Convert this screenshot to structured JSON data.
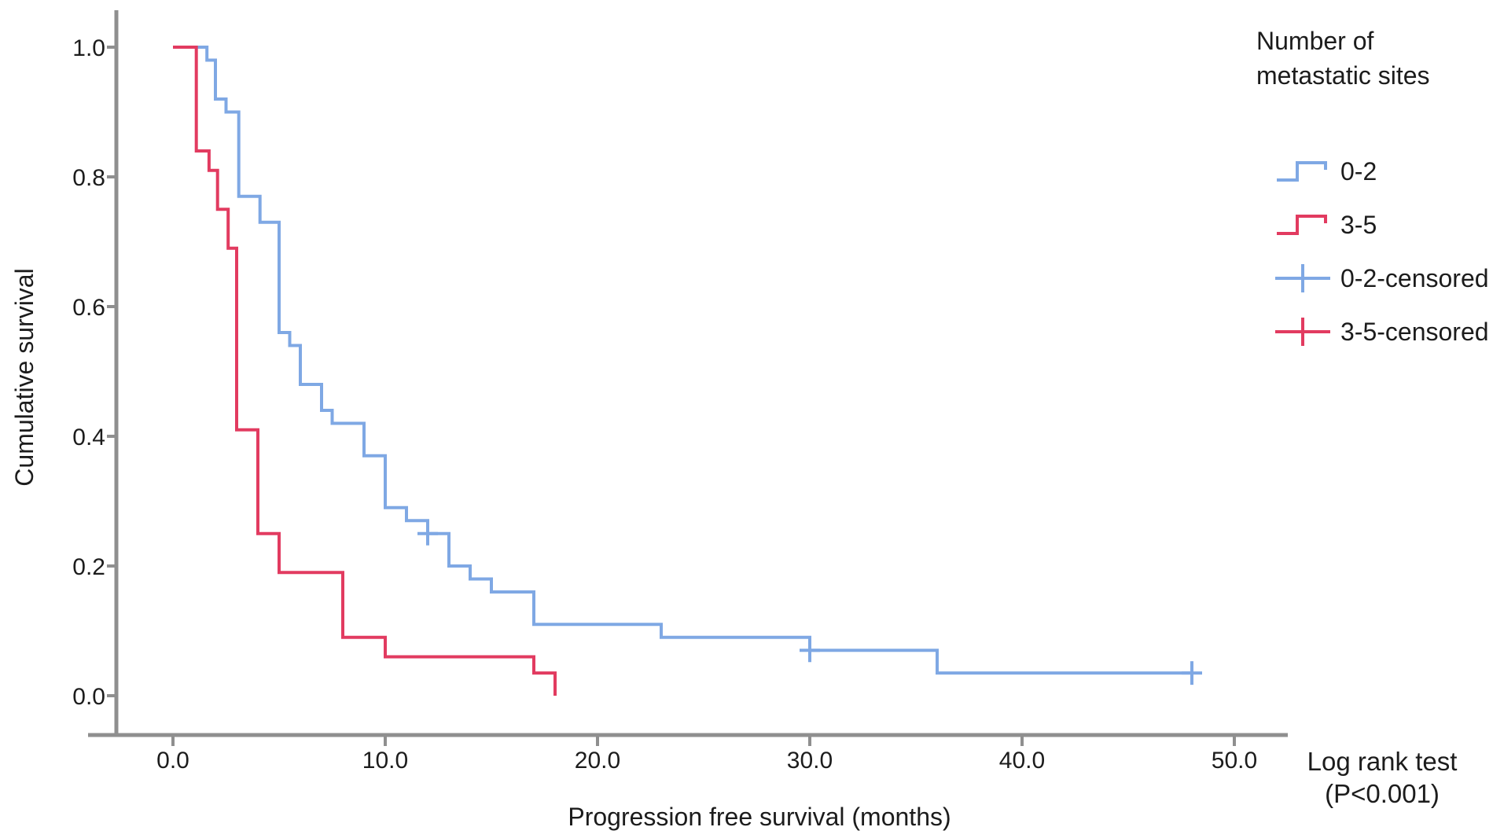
{
  "page": {
    "background": "#ffffff"
  },
  "chart_data": {
    "type": "line",
    "variant": "kaplan-meier-step",
    "title": "",
    "xlabel": "Progression free survival (months)",
    "ylabel": "Cumulative survival",
    "grid": false,
    "axis_color": "#8f8f8f",
    "text_color": "#1c1c1c",
    "x_axis": {
      "tick_values": [
        0,
        10,
        20,
        30,
        40,
        50
      ],
      "tick_labels": [
        "0.0",
        "10.0",
        "20.0",
        "30.0",
        "40.0",
        "50.0"
      ],
      "range": [
        0,
        52.5
      ]
    },
    "y_axis": {
      "tick_values": [
        1.0,
        0.8,
        0.6,
        0.4,
        0.2,
        0.0
      ],
      "tick_labels": [
        "1.0",
        "0.8",
        "0.6",
        "0.4",
        "0.2",
        "0.0"
      ],
      "range": [
        0,
        1
      ]
    },
    "legend": {
      "position": "top-right",
      "title_line1": "Number of",
      "title_line2": "metastatic sites",
      "items": [
        {
          "label": "0-2",
          "type": "step-line",
          "color": "#7FA8E4"
        },
        {
          "label": "3-5",
          "type": "step-line",
          "color": "#E23B60"
        },
        {
          "label": "0-2-censored",
          "type": "censor-plus",
          "color": "#7FA8E4"
        },
        {
          "label": "3-5-censored",
          "type": "censor-plus",
          "color": "#E23B60"
        }
      ]
    },
    "annotation": {
      "line1": "Log rank test",
      "line2": "(P<0.001)"
    },
    "series": [
      {
        "name": "0-2",
        "color": "#7FA8E4",
        "points": [
          [
            0,
            1.0
          ],
          [
            1.6,
            0.98
          ],
          [
            2.0,
            0.92
          ],
          [
            2.5,
            0.9
          ],
          [
            3.1,
            0.77
          ],
          [
            4.1,
            0.73
          ],
          [
            5.0,
            0.56
          ],
          [
            5.5,
            0.54
          ],
          [
            6.0,
            0.48
          ],
          [
            7.0,
            0.44
          ],
          [
            7.5,
            0.42
          ],
          [
            9.0,
            0.37
          ],
          [
            10.0,
            0.29
          ],
          [
            11.0,
            0.27
          ],
          [
            12.0,
            0.25
          ],
          [
            13.0,
            0.2
          ],
          [
            14.0,
            0.18
          ],
          [
            15.0,
            0.16
          ],
          [
            17.0,
            0.11
          ],
          [
            23.0,
            0.09
          ],
          [
            30.0,
            0.07
          ],
          [
            36.0,
            0.035
          ],
          [
            48.0,
            0.035
          ]
        ],
        "censored": [
          [
            12.0,
            0.25
          ],
          [
            30.0,
            0.07
          ],
          [
            48.0,
            0.035
          ]
        ]
      },
      {
        "name": "3-5",
        "color": "#E23B60",
        "points": [
          [
            0,
            1.0
          ],
          [
            1.1,
            0.84
          ],
          [
            1.7,
            0.81
          ],
          [
            2.1,
            0.75
          ],
          [
            2.6,
            0.69
          ],
          [
            3.0,
            0.41
          ],
          [
            4.0,
            0.25
          ],
          [
            5.0,
            0.19
          ],
          [
            8.0,
            0.09
          ],
          [
            10.0,
            0.06
          ],
          [
            17.0,
            0.035
          ],
          [
            18.0,
            0.0
          ]
        ],
        "censored": []
      }
    ]
  }
}
